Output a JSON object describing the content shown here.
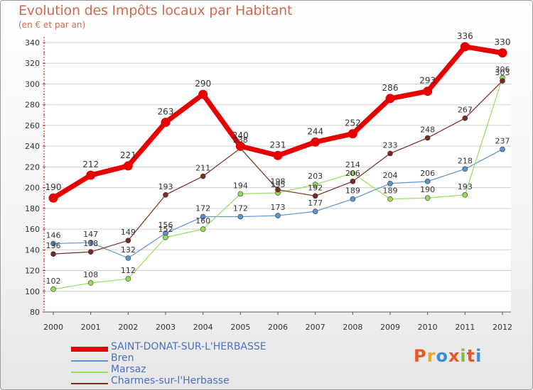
{
  "title": "Evolution des Impôts locaux par Habitant",
  "subtitle": "(en € et par an)",
  "logo_text": "Proxiti",
  "colors": {
    "title": "#d06a4f",
    "legend_text": "#4a6fc9",
    "grid": "#d0d0d0",
    "axis": "#cc2222"
  },
  "chart_data": {
    "type": "line",
    "title": "Evolution des Impôts locaux par Habitant",
    "subtitle": "(en € et par an)",
    "xlabel": "",
    "ylabel": "",
    "x": [
      "2000",
      "2001",
      "2002",
      "2003",
      "2004",
      "2005",
      "2006",
      "2007",
      "2008",
      "2009",
      "2010",
      "2011",
      "2012"
    ],
    "ylim": [
      80,
      340
    ],
    "yticks": [
      80,
      100,
      120,
      140,
      160,
      180,
      200,
      220,
      240,
      260,
      280,
      300,
      320,
      340
    ],
    "grid": true,
    "legend_position": "bottom-left",
    "series": [
      {
        "name": "SAINT-DONAT-SUR-L'HERBASSE",
        "color": "#e60000",
        "width": 7,
        "marker": 6.5,
        "values": [
          190,
          212,
          221,
          263,
          290,
          240,
          231,
          244,
          252,
          286,
          293,
          336,
          330
        ]
      },
      {
        "name": "Bren",
        "color": "#5b94cf",
        "width": 1.2,
        "marker": 3,
        "values": [
          146,
          147,
          132,
          156,
          172,
          172,
          173,
          177,
          189,
          204,
          206,
          218,
          237
        ]
      },
      {
        "name": "Marsaz",
        "color": "#94dd59",
        "width": 1.2,
        "marker": 3,
        "values": [
          102,
          108,
          112,
          152,
          160,
          194,
          195,
          203,
          214,
          189,
          190,
          193,
          306
        ]
      },
      {
        "name": "Charmes-sur-l'Herbasse",
        "color": "#7a2a22",
        "width": 1.2,
        "marker": 3,
        "values": [
          136,
          138,
          149,
          193,
          211,
          238,
          198,
          192,
          206,
          233,
          248,
          267,
          303
        ]
      }
    ]
  }
}
